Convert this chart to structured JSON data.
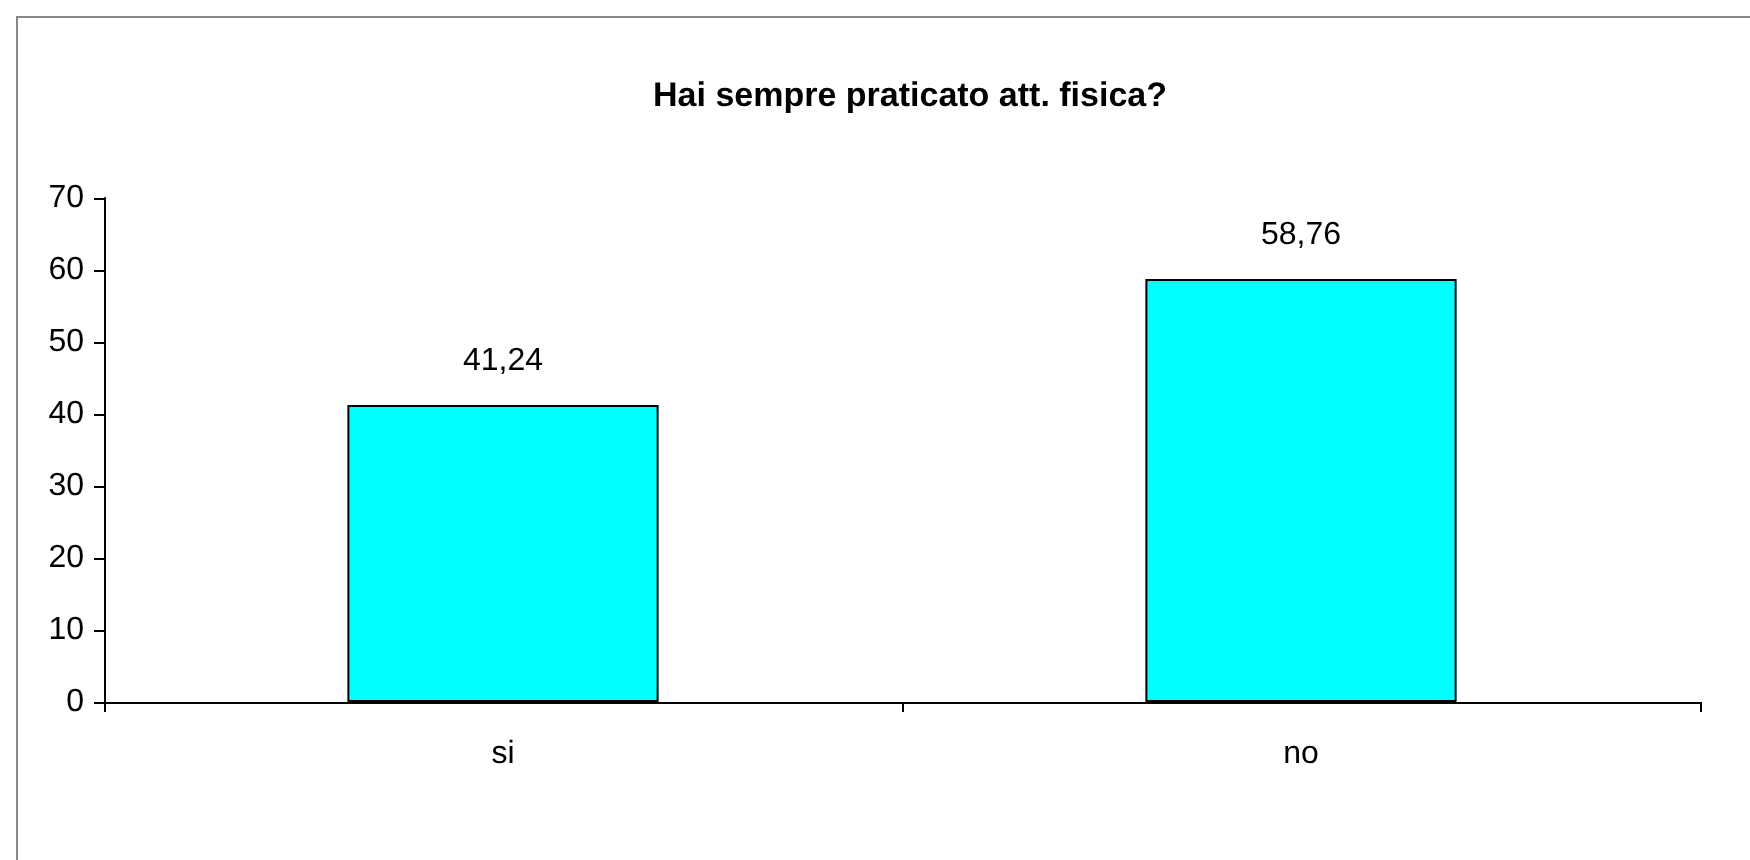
{
  "chart_data": {
    "type": "bar",
    "title": "Hai sempre praticato att. fisica?",
    "categories": [
      "si",
      "no"
    ],
    "values": [
      41.24,
      58.76
    ],
    "value_labels": [
      "41,24",
      "58,76"
    ],
    "color": "#00ffff",
    "ylim": [
      0,
      70
    ],
    "yticks": [
      0,
      10,
      20,
      30,
      40,
      50,
      60,
      70
    ],
    "grid": false
  }
}
